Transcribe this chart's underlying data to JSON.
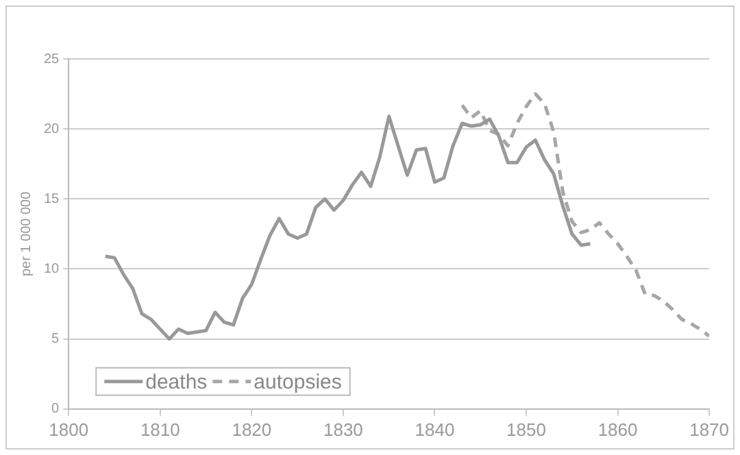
{
  "chart_data": {
    "type": "line",
    "ylabel": "per 1 000 000",
    "xlim": [
      1800,
      1870
    ],
    "xticks": [
      1800,
      1810,
      1820,
      1830,
      1840,
      1850,
      1860,
      1870
    ],
    "ylim": [
      0,
      25
    ],
    "yticks": [
      0,
      5,
      10,
      15,
      20,
      25
    ],
    "grid": "y",
    "legend": "bottom left",
    "marker": "none",
    "series": [
      {
        "name": "deaths",
        "color": "#999999",
        "line_style": "solid",
        "x": [
          1804,
          1805,
          1806,
          1807,
          1808,
          1809,
          1810,
          1811,
          1812,
          1813,
          1814,
          1815,
          1816,
          1817,
          1818,
          1819,
          1820,
          1821,
          1822,
          1823,
          1824,
          1825,
          1826,
          1827,
          1828,
          1829,
          1830,
          1831,
          1832,
          1833,
          1834,
          1835,
          1836,
          1837,
          1838,
          1839,
          1840,
          1841,
          1842,
          1843,
          1844,
          1845,
          1846,
          1847,
          1848,
          1849,
          1850,
          1851,
          1852,
          1853,
          1854,
          1855,
          1856,
          1857
        ],
        "values": [
          10.9,
          10.8,
          9.6,
          8.6,
          6.8,
          6.4,
          5.7,
          5.0,
          5.7,
          5.4,
          5.5,
          5.6,
          6.9,
          6.2,
          6.0,
          7.9,
          8.9,
          10.7,
          12.4,
          13.6,
          12.5,
          12.2,
          12.5,
          14.4,
          15.0,
          14.2,
          14.9,
          16.0,
          16.9,
          15.9,
          18.0,
          20.9,
          18.8,
          16.7,
          18.5,
          18.6,
          16.2,
          16.5,
          18.8,
          20.4,
          20.2,
          20.3,
          20.7,
          19.5,
          17.6,
          17.6,
          18.7,
          19.2,
          17.8,
          16.8,
          14.5,
          12.5,
          11.7,
          11.8
        ]
      },
      {
        "name": "autopsies",
        "color": "#a6a6a6",
        "line_style": "dashed",
        "x": [
          1843,
          1844,
          1845,
          1846,
          1847,
          1848,
          1849,
          1850,
          1851,
          1852,
          1853,
          1854,
          1855,
          1856,
          1857,
          1858,
          1859,
          1860,
          1861,
          1862,
          1863,
          1864,
          1865,
          1866,
          1867,
          1868,
          1869,
          1870
        ],
        "values": [
          21.7,
          20.8,
          21.3,
          19.9,
          19.6,
          18.8,
          20.4,
          21.6,
          22.5,
          21.8,
          19.8,
          15.5,
          13.4,
          12.6,
          12.8,
          13.3,
          12.5,
          11.8,
          10.9,
          9.9,
          8.2,
          8.1,
          7.7,
          7.1,
          6.4,
          6.1,
          5.7,
          5.2
        ]
      }
    ]
  }
}
